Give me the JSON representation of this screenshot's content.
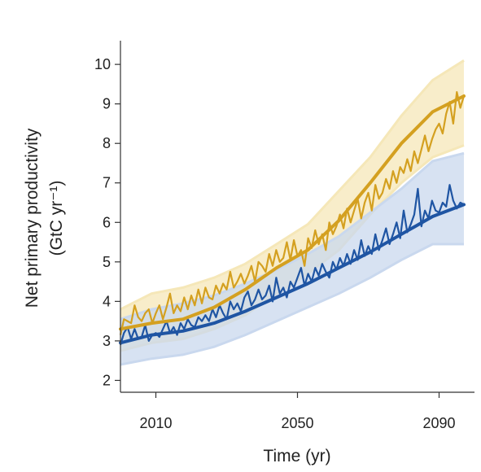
{
  "chart_data": {
    "type": "line",
    "xlabel": "Time (yr)",
    "ylabel_line1": "Net primary productivity",
    "ylabel_line2": "(GtC yr⁻¹)",
    "xlim": [
      2000,
      2100
    ],
    "ylim": [
      1.7,
      10.6
    ],
    "x_ticks": [
      2010,
      2050,
      2090
    ],
    "y_ticks": [
      2,
      3,
      4,
      5,
      6,
      7,
      8,
      9,
      10
    ],
    "grid": false,
    "colors": {
      "gold": "#d4a020",
      "gold_light": "#f5e7b8",
      "blue": "#1f55a3",
      "blue_light": "#c9d8ee"
    },
    "series": [
      {
        "color": "gold",
        "x_start": 2000,
        "x_end": 2097,
        "annual": [
          3.15,
          3.55,
          3.5,
          3.45,
          3.9,
          3.6,
          3.5,
          3.7,
          3.8,
          3.45,
          3.7,
          3.9,
          3.55,
          3.85,
          4.2,
          3.7,
          3.9,
          3.75,
          4.1,
          3.8,
          4.15,
          3.9,
          4.3,
          3.95,
          4.35,
          4.1,
          4.05,
          4.4,
          4.2,
          4.45,
          4.3,
          4.75,
          4.35,
          4.5,
          4.7,
          4.45,
          4.65,
          4.9,
          4.5,
          5.0,
          4.9,
          4.75,
          5.2,
          4.9,
          5.3,
          5.0,
          5.1,
          5.5,
          5.05,
          5.55,
          5.15,
          5.3,
          4.9,
          5.6,
          5.35,
          5.8,
          5.45,
          5.7,
          5.3,
          6.0,
          5.7,
          5.9,
          6.2,
          5.85,
          6.35,
          6.0,
          6.3,
          6.6,
          6.1,
          6.5,
          6.75,
          6.3,
          6.95,
          6.6,
          6.75,
          7.1,
          6.85,
          7.3,
          7.0,
          7.4,
          7.25,
          7.6,
          7.3,
          7.8,
          7.5,
          7.85,
          8.2,
          7.8,
          8.1,
          8.35,
          8.5,
          8.25,
          8.75,
          9.05,
          8.5,
          9.3,
          8.9,
          9.2
        ],
        "mean": [
          3.3,
          3.45,
          3.55,
          3.85,
          4.3,
          4.85,
          5.3,
          6.05,
          7.0,
          8.0,
          8.8,
          9.2
        ],
        "band_upper": [
          3.8,
          4.2,
          4.35,
          4.6,
          4.95,
          5.45,
          5.95,
          6.8,
          7.65,
          8.7,
          9.6,
          10.1
        ],
        "band_lower": [
          2.75,
          2.95,
          3.05,
          3.3,
          3.65,
          4.2,
          4.7,
          5.3,
          6.2,
          7.0,
          7.65,
          7.95
        ]
      },
      {
        "color": "blue",
        "x_start": 2000,
        "x_end": 2097,
        "annual": [
          2.9,
          3.2,
          3.35,
          3.05,
          3.3,
          3.05,
          3.1,
          3.4,
          3.0,
          3.15,
          3.2,
          3.1,
          3.3,
          3.5,
          3.2,
          3.35,
          3.15,
          3.45,
          3.3,
          3.55,
          3.4,
          3.35,
          3.6,
          3.5,
          3.65,
          3.5,
          3.8,
          3.6,
          3.9,
          3.7,
          3.55,
          4.0,
          3.8,
          3.95,
          3.75,
          4.1,
          4.25,
          3.9,
          4.05,
          4.3,
          4.05,
          4.15,
          4.4,
          4.0,
          4.6,
          4.2,
          4.35,
          4.1,
          4.5,
          4.35,
          4.6,
          4.85,
          4.4,
          4.7,
          4.5,
          4.85,
          4.65,
          4.95,
          4.75,
          4.6,
          5.0,
          4.8,
          5.1,
          4.9,
          5.2,
          4.95,
          5.3,
          5.05,
          5.55,
          5.15,
          5.4,
          5.2,
          5.7,
          5.3,
          5.55,
          5.85,
          5.45,
          5.7,
          6.0,
          5.6,
          6.3,
          5.75,
          5.95,
          6.2,
          6.85,
          5.9,
          6.3,
          6.1,
          6.55,
          6.3,
          6.25,
          6.5,
          6.4,
          6.95,
          6.55,
          6.35,
          6.5,
          6.45
        ],
        "mean": [
          2.95,
          3.15,
          3.25,
          3.45,
          3.75,
          4.1,
          4.45,
          4.85,
          5.25,
          5.7,
          6.15,
          6.45
        ],
        "band_upper": [
          3.55,
          3.8,
          3.95,
          4.15,
          4.45,
          4.8,
          5.2,
          5.65,
          6.25,
          6.85,
          7.55,
          7.75
        ],
        "band_lower": [
          2.4,
          2.55,
          2.65,
          2.85,
          3.15,
          3.5,
          3.85,
          4.2,
          4.6,
          5.05,
          5.45,
          5.45
        ]
      }
    ]
  }
}
